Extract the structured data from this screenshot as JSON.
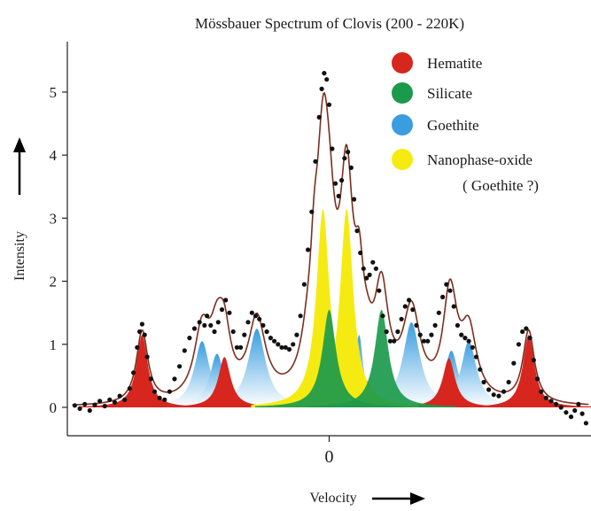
{
  "chart_data": {
    "type": "area",
    "title": "Mössbauer Spectrum of Clovis (200 - 220K)",
    "xlabel": "Velocity",
    "ylabel": "Intensity",
    "x_ticks": [
      {
        "value": 0,
        "label": "0"
      }
    ],
    "y_ticks": [
      {
        "value": 0,
        "label": "0"
      },
      {
        "value": 1,
        "label": "1"
      },
      {
        "value": 2,
        "label": "2"
      },
      {
        "value": 3,
        "label": "3"
      },
      {
        "value": 4,
        "label": "4"
      },
      {
        "value": 5,
        "label": "5"
      }
    ],
    "xlim": [
      -10.5,
      10.5
    ],
    "ylim": [
      -0.45,
      5.8
    ],
    "legend_position": "top-right",
    "legend": [
      {
        "label": "Hematite",
        "color": "#d7261e"
      },
      {
        "label": "Silicate",
        "color": "#1c9a4c"
      },
      {
        "label": "Goethite",
        "color": "#3a9de0"
      },
      {
        "label": "Nanophase-oxide",
        "sublabel": "( Goethite ?)",
        "color": "#f5eb12"
      }
    ],
    "components": [
      {
        "name": "Hematite",
        "color": "#d7261e",
        "peaks": [
          {
            "x": -7.5,
            "height": 1.15,
            "width": 0.28
          },
          {
            "x": -4.2,
            "height": 0.8,
            "width": 0.3
          },
          {
            "x": -0.9,
            "height": 0.38,
            "width": 0.3
          },
          {
            "x": 1.5,
            "height": 0.42,
            "width": 0.3
          },
          {
            "x": 4.8,
            "height": 0.78,
            "width": 0.3
          },
          {
            "x": 8.0,
            "height": 1.15,
            "width": 0.28
          }
        ]
      },
      {
        "name": "Goethite",
        "color": "#3a9de0",
        "peaks": [
          {
            "x": -5.1,
            "height": 1.05,
            "width": 0.38
          },
          {
            "x": -4.5,
            "height": 0.85,
            "width": 0.35
          },
          {
            "x": -2.9,
            "height": 1.25,
            "width": 0.42
          },
          {
            "x": -0.6,
            "height": 1.1,
            "width": 0.2
          },
          {
            "x": 1.2,
            "height": 1.15,
            "width": 0.2
          },
          {
            "x": 3.3,
            "height": 1.35,
            "width": 0.42
          },
          {
            "x": 4.9,
            "height": 0.9,
            "width": 0.35
          },
          {
            "x": 5.6,
            "height": 1.05,
            "width": 0.38
          }
        ]
      },
      {
        "name": "Nanophase-oxide",
        "color": "#f5eb12",
        "peaks": [
          {
            "x": -0.25,
            "height": 3.15,
            "width": 0.32
          },
          {
            "x": 0.7,
            "height": 3.15,
            "width": 0.32
          }
        ]
      },
      {
        "name": "Silicate",
        "color": "#1c9a4c",
        "peaks": [
          {
            "x": 0.0,
            "height": 1.55,
            "width": 0.33
          },
          {
            "x": 2.1,
            "height": 1.55,
            "width": 0.33
          }
        ]
      }
    ],
    "fit_curve": {
      "color": "#7a3020",
      "description_hidden": true
    },
    "data_points": [
      [
        -10.2,
        0.03
      ],
      [
        -10.0,
        -0.02
      ],
      [
        -9.8,
        0.05
      ],
      [
        -9.6,
        -0.05
      ],
      [
        -9.4,
        0.04
      ],
      [
        -9.2,
        0.1
      ],
      [
        -9.0,
        0.02
      ],
      [
        -8.8,
        0.12
      ],
      [
        -8.6,
        0.08
      ],
      [
        -8.4,
        0.18
      ],
      [
        -8.2,
        0.12
      ],
      [
        -8.0,
        0.3
      ],
      [
        -7.85,
        0.55
      ],
      [
        -7.7,
        0.95
      ],
      [
        -7.6,
        1.2
      ],
      [
        -7.5,
        1.32
      ],
      [
        -7.4,
        1.15
      ],
      [
        -7.3,
        0.8
      ],
      [
        -7.15,
        0.45
      ],
      [
        -7.0,
        0.25
      ],
      [
        -6.8,
        0.15
      ],
      [
        -6.6,
        0.12
      ],
      [
        -6.4,
        0.25
      ],
      [
        -6.2,
        0.45
      ],
      [
        -6.0,
        0.65
      ],
      [
        -5.8,
        0.9
      ],
      [
        -5.6,
        1.1
      ],
      [
        -5.4,
        1.25
      ],
      [
        -5.2,
        1.35
      ],
      [
        -5.0,
        1.3
      ],
      [
        -4.9,
        1.45
      ],
      [
        -4.75,
        1.3
      ],
      [
        -4.6,
        1.2
      ],
      [
        -4.45,
        1.35
      ],
      [
        -4.3,
        1.55
      ],
      [
        -4.15,
        1.7
      ],
      [
        -4.0,
        1.5
      ],
      [
        -3.85,
        1.2
      ],
      [
        -3.7,
        0.95
      ],
      [
        -3.55,
        0.95
      ],
      [
        -3.4,
        1.15
      ],
      [
        -3.25,
        1.35
      ],
      [
        -3.1,
        1.5
      ],
      [
        -2.95,
        1.45
      ],
      [
        -2.8,
        1.4
      ],
      [
        -2.65,
        1.3
      ],
      [
        -2.5,
        1.2
      ],
      [
        -2.35,
        1.1
      ],
      [
        -2.2,
        1.05
      ],
      [
        -2.05,
        1.0
      ],
      [
        -1.9,
        0.95
      ],
      [
        -1.75,
        0.95
      ],
      [
        -1.6,
        0.92
      ],
      [
        -1.45,
        1.0
      ],
      [
        -1.3,
        1.15
      ],
      [
        -1.15,
        1.45
      ],
      [
        -1.0,
        1.95
      ],
      [
        -0.85,
        2.5
      ],
      [
        -0.7,
        3.1
      ],
      [
        -0.55,
        3.9
      ],
      [
        -0.4,
        4.6
      ],
      [
        -0.3,
        5.05
      ],
      [
        -0.2,
        5.3
      ],
      [
        -0.1,
        5.2
      ],
      [
        0.0,
        4.8
      ],
      [
        0.12,
        4.1
      ],
      [
        0.25,
        3.55
      ],
      [
        0.38,
        3.35
      ],
      [
        0.5,
        3.6
      ],
      [
        0.62,
        3.95
      ],
      [
        0.75,
        4.05
      ],
      [
        0.88,
        3.8
      ],
      [
        1.0,
        3.3
      ],
      [
        1.12,
        2.8
      ],
      [
        1.25,
        2.45
      ],
      [
        1.38,
        2.2
      ],
      [
        1.5,
        2.05
      ],
      [
        1.62,
        2.1
      ],
      [
        1.75,
        2.3
      ],
      [
        1.88,
        2.2
      ],
      [
        2.0,
        1.85
      ],
      [
        2.15,
        1.45
      ],
      [
        2.3,
        1.2
      ],
      [
        2.45,
        1.05
      ],
      [
        2.6,
        1.05
      ],
      [
        2.75,
        1.2
      ],
      [
        2.9,
        1.4
      ],
      [
        3.05,
        1.6
      ],
      [
        3.2,
        1.7
      ],
      [
        3.35,
        1.55
      ],
      [
        3.5,
        1.3
      ],
      [
        3.65,
        1.15
      ],
      [
        3.8,
        1.05
      ],
      [
        3.95,
        1.05
      ],
      [
        4.1,
        1.15
      ],
      [
        4.25,
        1.3
      ],
      [
        4.4,
        1.5
      ],
      [
        4.55,
        1.75
      ],
      [
        4.7,
        1.95
      ],
      [
        4.85,
        1.85
      ],
      [
        5.0,
        1.6
      ],
      [
        5.15,
        1.3
      ],
      [
        5.3,
        1.15
      ],
      [
        5.45,
        1.1
      ],
      [
        5.6,
        1.05
      ],
      [
        5.75,
        0.95
      ],
      [
        5.9,
        0.8
      ],
      [
        6.05,
        0.6
      ],
      [
        6.2,
        0.4
      ],
      [
        6.4,
        0.28
      ],
      [
        6.6,
        0.2
      ],
      [
        6.8,
        0.18
      ],
      [
        7.0,
        0.25
      ],
      [
        7.2,
        0.4
      ],
      [
        7.4,
        0.7
      ],
      [
        7.6,
        1.0
      ],
      [
        7.75,
        1.2
      ],
      [
        7.9,
        1.25
      ],
      [
        8.05,
        1.1
      ],
      [
        8.2,
        0.75
      ],
      [
        8.35,
        0.45
      ],
      [
        8.5,
        0.25
      ],
      [
        8.7,
        0.15
      ],
      [
        8.9,
        0.1
      ],
      [
        9.1,
        0.05
      ],
      [
        9.3,
        0.0
      ],
      [
        9.5,
        -0.08
      ],
      [
        9.7,
        -0.15
      ],
      [
        9.85,
        -0.05
      ],
      [
        10.0,
        0.05
      ],
      [
        10.15,
        -0.1
      ],
      [
        10.3,
        -0.25
      ]
    ]
  }
}
